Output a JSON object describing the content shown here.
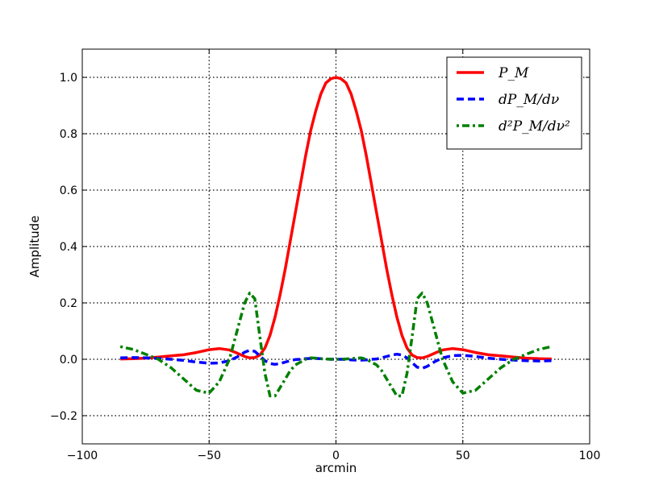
{
  "chart_data": {
    "type": "line",
    "xlabel": "arcmin",
    "ylabel": "Amplitude",
    "xlim": [
      -100,
      100
    ],
    "ylim": [
      -0.3,
      1.1
    ],
    "xticks": [
      -100,
      -50,
      0,
      50,
      100
    ],
    "xtick_labels": [
      "−100",
      "−50",
      "0",
      "50",
      "100"
    ],
    "yticks": [
      -0.2,
      0.0,
      0.2,
      0.4,
      0.6,
      0.8,
      1.0
    ],
    "ytick_labels": [
      "−0.2",
      "0.0",
      "0.2",
      "0.4",
      "0.6",
      "0.8",
      "1.0"
    ],
    "grid": true,
    "legend_position": "top-right",
    "x": [
      -85,
      -80,
      -75,
      -70,
      -65,
      -60,
      -55,
      -50,
      -46,
      -42,
      -39,
      -36,
      -34,
      -32,
      -30,
      -28,
      -26,
      -24,
      -22,
      -20,
      -18,
      -16,
      -14,
      -12,
      -10,
      -8,
      -6,
      -4,
      -2,
      0,
      2,
      4,
      6,
      8,
      10,
      12,
      14,
      16,
      18,
      20,
      22,
      24,
      26,
      28,
      30,
      32,
      34,
      36,
      39,
      42,
      46,
      50,
      55,
      60,
      65,
      70,
      75,
      80,
      85
    ],
    "series": [
      {
        "name": "P_M",
        "color": "#ff0000",
        "style": "solid",
        "values": [
          0.001,
          0.002,
          0.004,
          0.008,
          0.012,
          0.016,
          0.024,
          0.034,
          0.038,
          0.033,
          0.022,
          0.01,
          0.005,
          0.006,
          0.015,
          0.04,
          0.085,
          0.15,
          0.23,
          0.32,
          0.42,
          0.52,
          0.62,
          0.72,
          0.81,
          0.88,
          0.94,
          0.98,
          0.995,
          1.0,
          0.995,
          0.98,
          0.94,
          0.88,
          0.81,
          0.72,
          0.62,
          0.52,
          0.42,
          0.32,
          0.23,
          0.15,
          0.085,
          0.04,
          0.015,
          0.006,
          0.005,
          0.01,
          0.022,
          0.033,
          0.038,
          0.034,
          0.024,
          0.016,
          0.012,
          0.008,
          0.004,
          0.002,
          0.001
        ]
      },
      {
        "name": "dP_M/dν",
        "color": "#0000ff",
        "style": "dashed",
        "values": [
          0.005,
          0.006,
          0.005,
          0.003,
          0.0,
          -0.004,
          -0.01,
          -0.014,
          -0.013,
          -0.005,
          0.008,
          0.025,
          0.032,
          0.028,
          0.012,
          -0.005,
          -0.015,
          -0.018,
          -0.015,
          -0.01,
          -0.005,
          -0.001,
          0.0,
          0.002,
          0.003,
          0.003,
          0.002,
          0.001,
          0.0,
          0.0,
          0.0,
          -0.001,
          -0.002,
          -0.003,
          -0.003,
          -0.002,
          0.0,
          0.001,
          0.005,
          0.01,
          0.015,
          0.018,
          0.015,
          0.005,
          -0.012,
          -0.028,
          -0.032,
          -0.025,
          -0.008,
          0.005,
          0.013,
          0.014,
          0.01,
          0.004,
          0.0,
          -0.003,
          -0.005,
          -0.006,
          -0.005
        ]
      },
      {
        "name": "d²P_M/dν²",
        "color": "#008000",
        "style": "dashdot",
        "values": [
          0.045,
          0.035,
          0.018,
          0.0,
          -0.03,
          -0.07,
          -0.11,
          -0.12,
          -0.08,
          0.0,
          0.1,
          0.2,
          0.235,
          0.215,
          0.08,
          -0.05,
          -0.13,
          -0.13,
          -0.1,
          -0.07,
          -0.04,
          -0.02,
          -0.01,
          0.0,
          0.005,
          0.004,
          0.002,
          0.001,
          0.0,
          0.0,
          0.0,
          0.001,
          0.002,
          0.004,
          0.005,
          0.0,
          -0.01,
          -0.02,
          -0.04,
          -0.07,
          -0.1,
          -0.13,
          -0.13,
          -0.05,
          0.08,
          0.215,
          0.235,
          0.2,
          0.1,
          0.0,
          -0.08,
          -0.12,
          -0.11,
          -0.07,
          -0.03,
          0.0,
          0.018,
          0.035,
          0.045
        ]
      }
    ]
  }
}
